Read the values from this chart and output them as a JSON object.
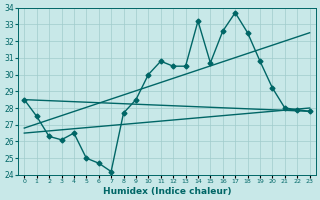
{
  "xlabel": "Humidex (Indice chaleur)",
  "x": [
    0,
    1,
    2,
    3,
    4,
    5,
    6,
    7,
    8,
    9,
    10,
    11,
    12,
    13,
    14,
    15,
    16,
    17,
    18,
    19,
    20,
    21,
    22,
    23
  ],
  "line1": [
    28.5,
    27.5,
    26.3,
    26.1,
    26.5,
    25.0,
    24.7,
    24.2,
    27.7,
    28.5,
    30.0,
    30.8,
    30.5,
    30.5,
    33.2,
    30.7,
    32.6,
    33.7,
    32.5,
    30.8,
    29.2,
    28.0,
    27.9,
    27.8
  ],
  "trend1_x": [
    0,
    23
  ],
  "trend1_y": [
    26.8,
    32.5
  ],
  "trend2_x": [
    0,
    23
  ],
  "trend2_y": [
    26.5,
    28.0
  ],
  "trend3_x": [
    0,
    23
  ],
  "trend3_y": [
    28.5,
    27.8
  ],
  "ylim": [
    24,
    34
  ],
  "xlim": [
    -0.5,
    23.5
  ],
  "yticks": [
    24,
    25,
    26,
    27,
    28,
    29,
    30,
    31,
    32,
    33,
    34
  ],
  "xticks": [
    0,
    1,
    2,
    3,
    4,
    5,
    6,
    7,
    8,
    9,
    10,
    11,
    12,
    13,
    14,
    15,
    16,
    17,
    18,
    19,
    20,
    21,
    22,
    23
  ],
  "xtick_labels": [
    "0",
    "1",
    "2",
    "3",
    "4",
    "5",
    "6",
    "7",
    "8",
    "9",
    "10",
    "11",
    "12",
    "13",
    "14",
    "15",
    "16",
    "17",
    "18",
    "19",
    "20",
    "21",
    "22",
    "23"
  ],
  "line_color": "#006666",
  "bg_color": "#c8e8e8",
  "grid_color": "#a0cccc",
  "marker": "D",
  "marker_size": 2.5,
  "linewidth": 1.0
}
